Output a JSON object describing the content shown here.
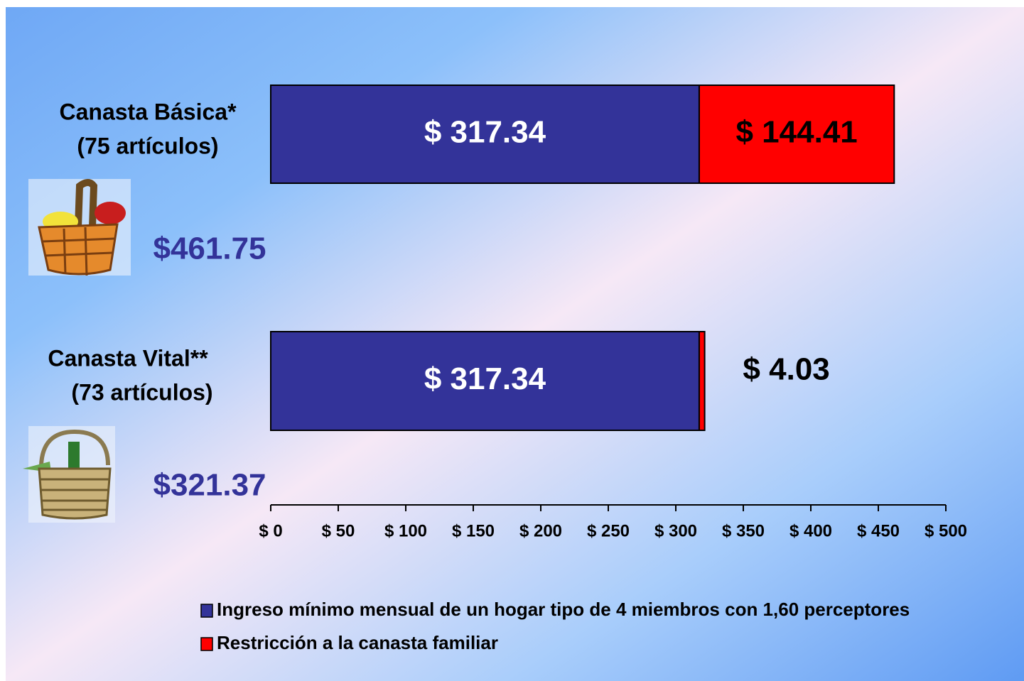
{
  "chart_data": {
    "type": "stacked-barh",
    "categories": [
      "Canasta Básica*",
      "Canasta Vital**"
    ],
    "category_notes": [
      "(75 artículos)",
      "(73 artículos)"
    ],
    "totals": [
      461.75,
      321.37
    ],
    "total_labels": [
      "$461.75",
      "$321.37"
    ],
    "series": [
      {
        "name": "Ingreso mínimo mensual de un hogar tipo de 4 miembros con 1,60 perceptores",
        "color": "#333399",
        "label_color": "#ffffff",
        "values": [
          317.34,
          317.34
        ],
        "value_labels": [
          "$ 317.34",
          "$ 317.34"
        ]
      },
      {
        "name": "Restricción a la canasta familiar",
        "color": "#ff0000",
        "label_color": "#000000",
        "values": [
          144.41,
          4.03
        ],
        "value_labels": [
          "$ 144.41",
          "$ 4.03"
        ]
      }
    ],
    "xlim": [
      0,
      500
    ],
    "xticks": [
      {
        "value": 0,
        "label": "$ 0"
      },
      {
        "value": 50,
        "label": "$ 50"
      },
      {
        "value": 100,
        "label": "$ 100"
      },
      {
        "value": 150,
        "label": "$ 150"
      },
      {
        "value": 200,
        "label": "$ 200"
      },
      {
        "value": 250,
        "label": "$ 250"
      },
      {
        "value": 300,
        "label": "$ 300"
      },
      {
        "value": 350,
        "label": "$ 350"
      },
      {
        "value": 400,
        "label": "$ 400"
      },
      {
        "value": 450,
        "label": "$ 450"
      },
      {
        "value": 500,
        "label": "$ 500"
      }
    ]
  }
}
